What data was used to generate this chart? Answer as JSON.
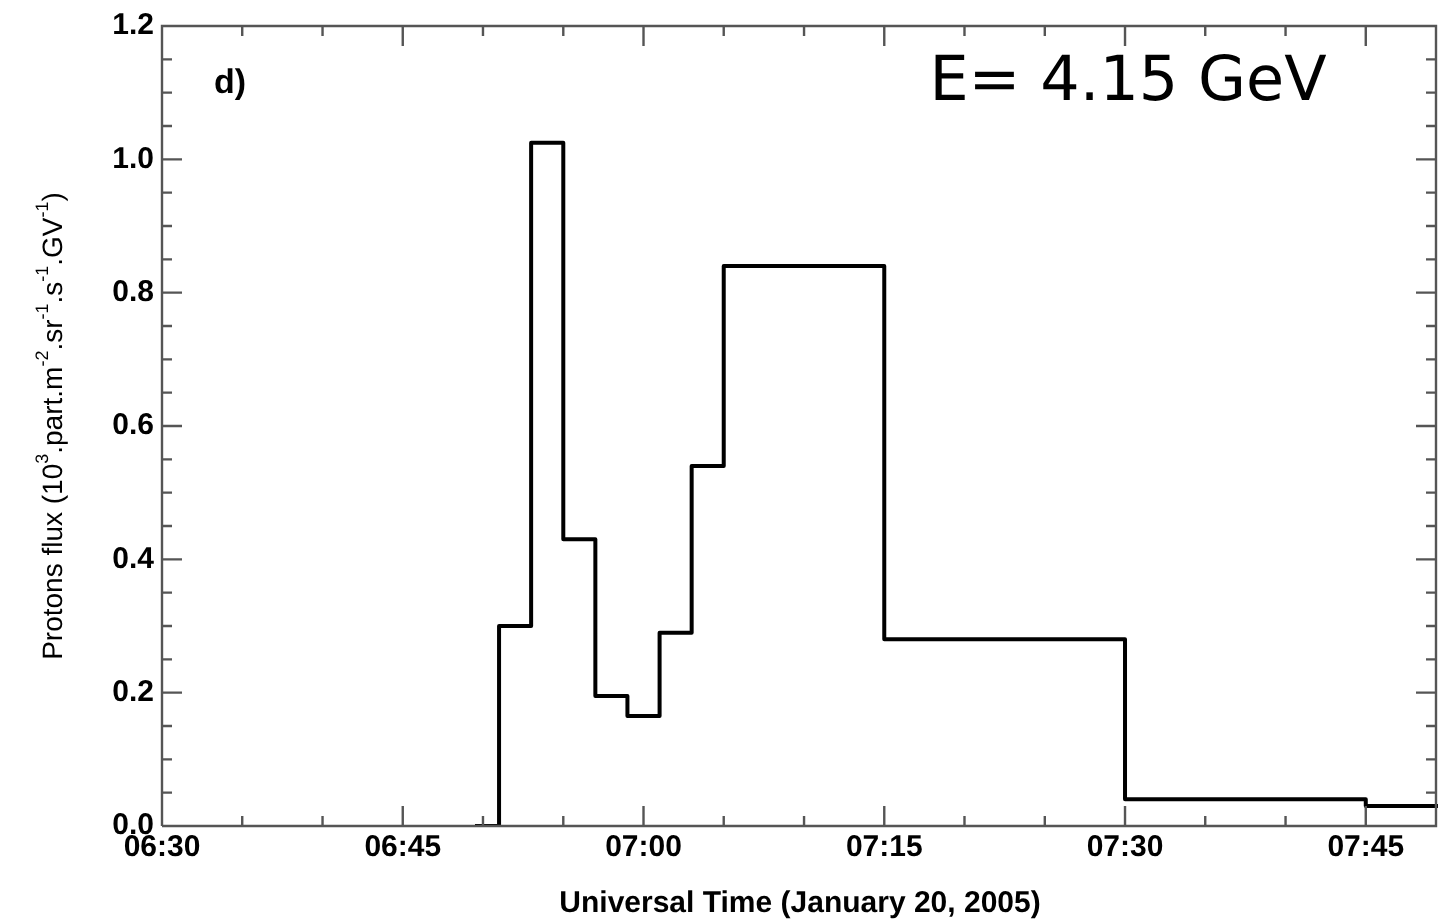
{
  "chart_data": {
    "type": "step",
    "xlabel": "Universal Time (January 20, 2005)",
    "ylabel": "Protons flux (10$^{3}$.part.m$^{-2}$.sr$^{-1}$.s$^{-1}$.GV$^{-1}$)",
    "annotations": [
      "d)",
      "E= 4.15 GeV"
    ],
    "x": [
      6.825,
      6.85,
      6.8833,
      6.9167,
      6.95,
      6.9833,
      7.0167,
      7.05,
      7.0833,
      7.25,
      7.5,
      7.75,
      7.825
    ],
    "series": [
      {
        "color": "#000000",
        "values": [
          0,
          0.3,
          1.025,
          0.43,
          0.195,
          0.165,
          0.29,
          0.54,
          0.84,
          0.28,
          0.04,
          0.03,
          0.03
        ]
      }
    ],
    "xlim": [
      6.5,
      7.825
    ],
    "xticks": [
      {
        "value": 6.5,
        "label": "06:30"
      },
      {
        "value": 6.5833,
        "label": null
      },
      {
        "value": 6.6667,
        "label": null
      },
      {
        "value": 6.75,
        "label": "06:45"
      },
      {
        "value": 6.8333,
        "label": null
      },
      {
        "value": 6.9167,
        "label": null
      },
      {
        "value": 7,
        "label": "07:00"
      },
      {
        "value": 7.0833,
        "label": null
      },
      {
        "value": 7.1667,
        "label": null
      },
      {
        "value": 7.25,
        "label": "07:15"
      },
      {
        "value": 7.3333,
        "label": null
      },
      {
        "value": 7.4167,
        "label": null
      },
      {
        "value": 7.5,
        "label": "07:30"
      },
      {
        "value": 7.5833,
        "label": null
      },
      {
        "value": 7.6667,
        "label": null
      },
      {
        "value": 7.75,
        "label": "07:45"
      }
    ],
    "ylim": [
      0,
      1.2
    ],
    "yticks": [
      {
        "value": 0,
        "label": "0.0"
      },
      {
        "value": 0.05,
        "label": null
      },
      {
        "value": 0.1,
        "label": null
      },
      {
        "value": 0.15,
        "label": null
      },
      {
        "value": 0.2,
        "label": "0.2"
      },
      {
        "value": 0.25,
        "label": null
      },
      {
        "value": 0.3,
        "label": null
      },
      {
        "value": 0.35,
        "label": null
      },
      {
        "value": 0.4,
        "label": "0.4"
      },
      {
        "value": 0.45,
        "label": null
      },
      {
        "value": 0.5,
        "label": null
      },
      {
        "value": 0.55,
        "label": null
      },
      {
        "value": 0.6,
        "label": "0.6"
      },
      {
        "value": 0.65,
        "label": null
      },
      {
        "value": 0.7,
        "label": null
      },
      {
        "value": 0.75,
        "label": null
      },
      {
        "value": 0.8,
        "label": "0.8"
      },
      {
        "value": 0.85,
        "label": null
      },
      {
        "value": 0.9,
        "label": null
      },
      {
        "value": 0.95,
        "label": null
      },
      {
        "value": 1.0,
        "label": "1.0"
      },
      {
        "value": 1.05,
        "label": null
      },
      {
        "value": 1.1,
        "label": null
      },
      {
        "value": 1.15,
        "label": null
      },
      {
        "value": 1.2,
        "label": "1.2"
      }
    ],
    "marker": "none",
    "line_style": "solid",
    "grid": false,
    "legend": false
  }
}
